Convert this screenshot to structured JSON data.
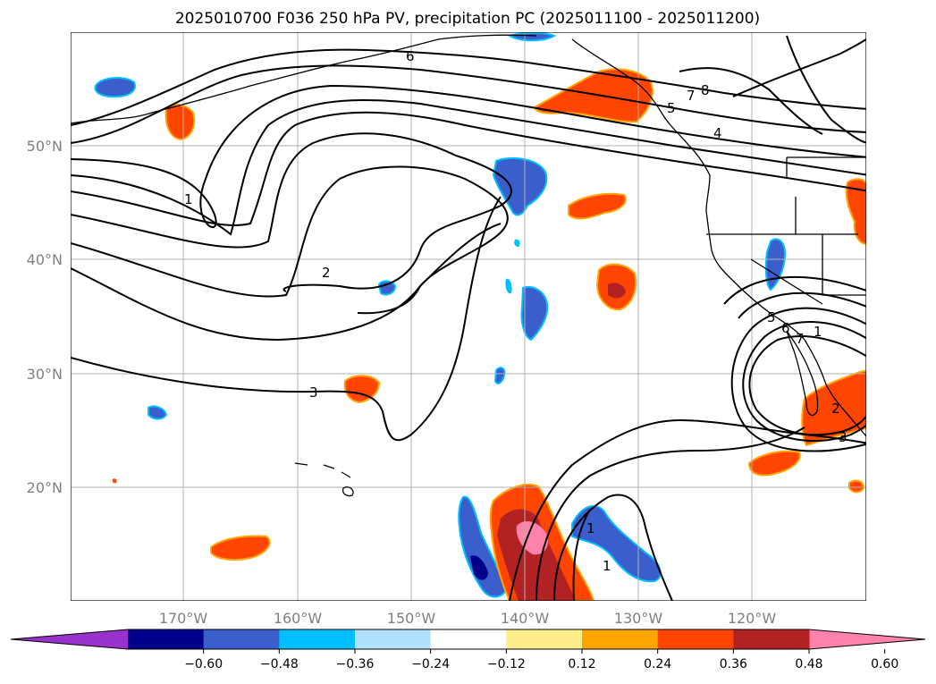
{
  "title": "2025010700 F036 250 hPa PV, precipitation PC (2025011100 - 2025011200)",
  "map": {
    "projection": "PlateCarree",
    "lon_range": [
      -180,
      -110
    ],
    "lat_range": [
      10,
      60
    ],
    "gridlines": true,
    "lon_ticks": [
      "170°W",
      "160°W",
      "150°W",
      "140°W",
      "130°W",
      "120°W"
    ],
    "lat_ticks": [
      "20°N",
      "30°N",
      "40°N",
      "50°N"
    ],
    "contour_labels": [
      "6",
      "7",
      "8",
      "5",
      "4",
      "1",
      "2",
      "3",
      "5",
      "6",
      "7",
      "1",
      "2",
      "3",
      "1",
      "1",
      "2"
    ]
  },
  "colorbar": {
    "ticks": [
      "−0.60",
      "−0.48",
      "−0.36",
      "−0.24",
      "−0.12",
      "0.12",
      "0.24",
      "0.36",
      "0.48",
      "0.60"
    ],
    "colors": [
      "#9932cc",
      "#00008b",
      "#3a5fcd",
      "#00bfff",
      "#b0e2ff",
      "#ffffff",
      "#ffec8b",
      "#ffa500",
      "#ff4500",
      "#b22222",
      "#ff82ab"
    ],
    "extend": "both"
  }
}
